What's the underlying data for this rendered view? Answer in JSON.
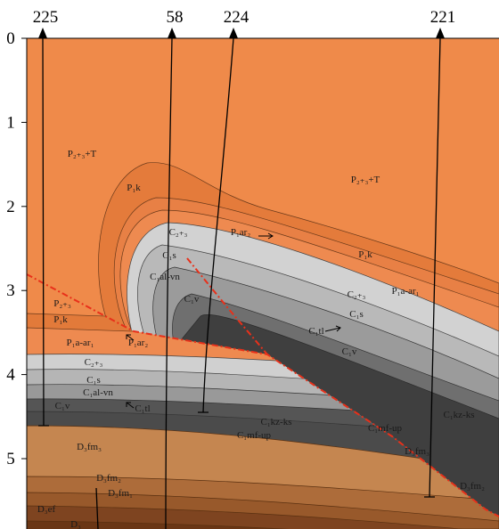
{
  "wells": [
    {
      "label": "225"
    },
    {
      "label": "58"
    },
    {
      "label": "224"
    },
    {
      "label": "221"
    }
  ],
  "depth_axis": {
    "ticks": [
      0,
      1,
      2,
      3,
      4,
      5
    ]
  },
  "formations": [
    "P₂₊₃+T",
    "P₂₊₃+T",
    "P₁k",
    "P₁k",
    "C₂₊₃",
    "P₁ar₂",
    "C₁s",
    "C₁al-vn",
    "C₁v",
    "P₁a-ar₁",
    "C₂₊₃",
    "C₁s",
    "C₁tl",
    "C₁v",
    "P₂₊₃",
    "P₁k",
    "P₁a-ar₁",
    "P₁ar₂",
    "C₂₊₃",
    "C₁s",
    "C₁al-vn",
    "C₁v",
    "C₁tl",
    "C₁kz-ks",
    "C₁mf-up",
    "C₁mf-up",
    "C₁kz-ks",
    "D₃fm₃",
    "D₃fm₃",
    "D₃fm₂",
    "D₃fm₂",
    "D₃fm₁",
    "D₃ef",
    "D₃"
  ]
}
